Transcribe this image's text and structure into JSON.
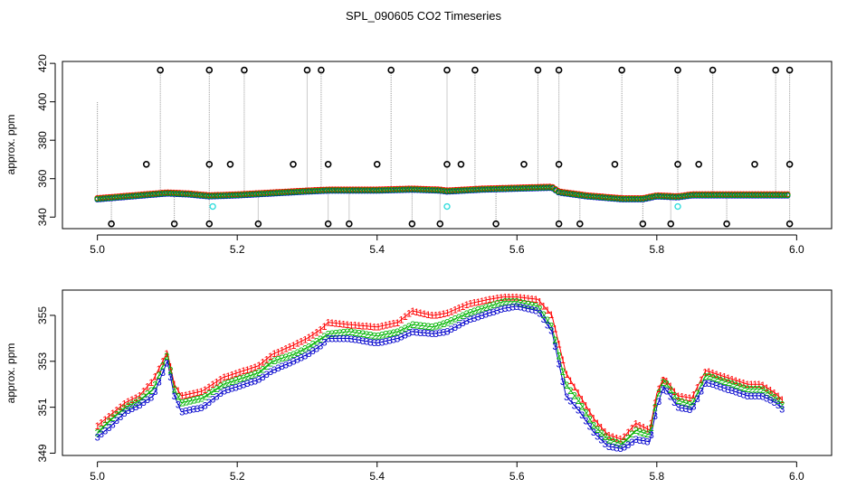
{
  "title": "SPL_090605  CO2 Timeseries",
  "colors": {
    "series1": "#ff0000",
    "series2": "#00b400",
    "series3": "#0000cc",
    "cyan": "#33dddd",
    "outlier": "#000000",
    "spike": "#999999"
  },
  "chart_data": [
    {
      "name": "top-panel",
      "type": "scatter",
      "ylabel": "approx. ppm",
      "xlabel": "",
      "xlim": [
        4.95,
        6.05
      ],
      "ylim": [
        334,
        421
      ],
      "xticks": [
        5.0,
        5.2,
        5.4,
        5.6,
        5.8,
        6.0
      ],
      "xtick_labels": [
        "5.0",
        "5.2",
        "5.4",
        "5.6",
        "5.8",
        "6.0"
      ],
      "yticks": [
        340,
        360,
        380,
        400,
        420
      ],
      "ytick_labels": [
        "340",
        "360",
        "380",
        "400",
        "420"
      ],
      "baseline": {
        "x": [
          5.0,
          5.05,
          5.1,
          5.13,
          5.16,
          5.2,
          5.25,
          5.3,
          5.33,
          5.4,
          5.45,
          5.49,
          5.5,
          5.55,
          5.6,
          5.65,
          5.66,
          5.7,
          5.75,
          5.78,
          5.8,
          5.83,
          5.85,
          5.9,
          5.95,
          5.99
        ],
        "y": [
          349.5,
          351,
          352.5,
          352,
          351,
          351.5,
          352.5,
          353.5,
          354,
          354,
          354.5,
          354,
          353.5,
          354.5,
          355,
          355.5,
          353,
          351,
          349.5,
          349.5,
          351,
          350.5,
          351.5,
          351.5,
          351.5,
          351.5
        ]
      },
      "outliers_high": [
        5.09,
        5.16,
        5.21,
        5.3,
        5.32,
        5.42,
        5.5,
        5.54,
        5.63,
        5.66,
        5.75,
        5.83,
        5.88,
        5.97,
        5.99
      ],
      "outliers_high_value": 416.5,
      "outliers_mid": [
        5.07,
        5.16,
        5.19,
        5.28,
        5.33,
        5.4,
        5.5,
        5.52,
        5.61,
        5.66,
        5.74,
        5.83,
        5.86,
        5.94,
        5.99
      ],
      "outliers_mid_value": 367.5,
      "outliers_low": [
        5.02,
        5.11,
        5.16,
        5.23,
        5.33,
        5.36,
        5.45,
        5.49,
        5.57,
        5.66,
        5.69,
        5.78,
        5.82,
        5.9,
        5.99
      ],
      "outliers_low_value": 336.5,
      "spike_from_base": [
        5.0
      ],
      "spike_to": 400,
      "cyan_points": [
        {
          "x": 5.165,
          "y": 345.5
        },
        {
          "x": 5.5,
          "y": 345.5
        },
        {
          "x": 5.83,
          "y": 345.5
        }
      ]
    },
    {
      "name": "bottom-panel",
      "type": "line",
      "ylabel": "approx. ppm",
      "xlabel": "",
      "xlim": [
        4.95,
        6.05
      ],
      "ylim": [
        348.9,
        356.1
      ],
      "xticks": [
        5.0,
        5.2,
        5.4,
        5.6,
        5.8,
        6.0
      ],
      "xtick_labels": [
        "5.0",
        "5.2",
        "5.4",
        "5.6",
        "5.8",
        "6.0"
      ],
      "yticks": [
        349,
        351,
        353,
        355
      ],
      "ytick_labels": [
        "349",
        "351",
        "353",
        "355"
      ],
      "x": [
        5.0,
        5.02,
        5.04,
        5.06,
        5.08,
        5.1,
        5.11,
        5.12,
        5.15,
        5.18,
        5.2,
        5.23,
        5.25,
        5.28,
        5.3,
        5.32,
        5.33,
        5.36,
        5.4,
        5.43,
        5.45,
        5.48,
        5.5,
        5.53,
        5.56,
        5.58,
        5.6,
        5.63,
        5.65,
        5.67,
        5.69,
        5.71,
        5.73,
        5.75,
        5.77,
        5.79,
        5.8,
        5.81,
        5.83,
        5.85,
        5.87,
        5.9,
        5.93,
        5.95,
        5.97,
        5.98
      ],
      "series": [
        {
          "name": "1",
          "values": [
            350.2,
            350.7,
            351.2,
            351.5,
            352.2,
            353.4,
            352.0,
            351.5,
            351.7,
            352.3,
            352.5,
            352.8,
            353.3,
            353.7,
            354.0,
            354.4,
            354.7,
            354.6,
            354.5,
            354.7,
            355.2,
            355.0,
            355.1,
            355.5,
            355.7,
            355.8,
            355.8,
            355.7,
            355.0,
            352.5,
            351.5,
            350.5,
            349.8,
            349.6,
            350.3,
            350.0,
            351.6,
            352.3,
            351.5,
            351.4,
            352.6,
            352.3,
            352.0,
            352.0,
            351.6,
            351.3
          ]
        },
        {
          "name": "2",
          "values": [
            349.9,
            350.5,
            351.0,
            351.3,
            351.8,
            353.3,
            351.8,
            351.2,
            351.4,
            352.0,
            352.2,
            352.5,
            353.0,
            353.3,
            353.6,
            354.0,
            354.2,
            354.3,
            354.1,
            354.3,
            354.6,
            354.5,
            354.7,
            355.1,
            355.4,
            355.6,
            355.6,
            355.4,
            354.5,
            352.0,
            351.2,
            350.2,
            349.6,
            349.4,
            350.0,
            349.8,
            351.4,
            352.2,
            351.3,
            351.1,
            352.4,
            352.1,
            351.8,
            351.8,
            351.4,
            351.1
          ]
        },
        {
          "name": "3",
          "values": [
            349.7,
            350.2,
            350.8,
            351.1,
            351.5,
            353.0,
            351.5,
            350.8,
            351.0,
            351.7,
            351.9,
            352.2,
            352.6,
            353.0,
            353.3,
            353.7,
            354.0,
            354.0,
            353.8,
            354.0,
            354.3,
            354.2,
            354.3,
            354.8,
            355.1,
            355.3,
            355.4,
            355.2,
            354.3,
            351.5,
            350.8,
            349.9,
            349.3,
            349.2,
            349.6,
            349.5,
            351.0,
            351.9,
            351.0,
            350.9,
            352.1,
            351.8,
            351.5,
            351.5,
            351.2,
            350.9
          ]
        }
      ]
    }
  ]
}
